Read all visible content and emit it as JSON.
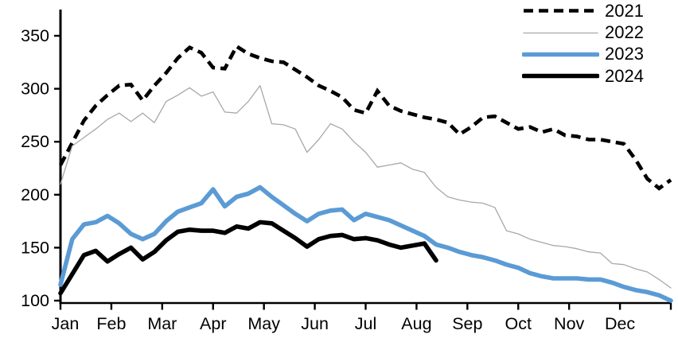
{
  "chart_data": {
    "type": "line",
    "title": "",
    "x_unit": "weekly",
    "grid": false,
    "x_axis": {
      "tick_labels": [
        "Jan",
        "Feb",
        "Mar",
        "Apr",
        "May",
        "Jun",
        "Jul",
        "Aug",
        "Sep",
        "Oct",
        "Nov",
        "Dec"
      ]
    },
    "y_axis": {
      "ticks": [
        100,
        150,
        200,
        250,
        300,
        350
      ],
      "range": [
        100,
        375
      ]
    },
    "legend": {
      "position": "top-right"
    },
    "axis_color": "#000000",
    "background": "#ffffff",
    "series": [
      {
        "name": "2021",
        "color": "#000000",
        "line_style": "dashed",
        "line_width": 4.6,
        "values": [
          228,
          249,
          270,
          284,
          294,
          303,
          304,
          289,
          303,
          315,
          329,
          339,
          334,
          320,
          319,
          340,
          333,
          329,
          326,
          325,
          318,
          311,
          303,
          298,
          292,
          280,
          277,
          298,
          284,
          279,
          276,
          273,
          271,
          268,
          257,
          264,
          273,
          274,
          268,
          262,
          264,
          259,
          262,
          256,
          255,
          252,
          252,
          250,
          248,
          233,
          215,
          206,
          214
        ]
      },
      {
        "name": "2022",
        "color": "#a8a8a8",
        "line_style": "solid",
        "line_width": 1.3,
        "values": [
          210,
          246,
          254,
          262,
          271,
          277,
          269,
          277,
          268,
          288,
          294,
          301,
          293,
          297,
          278,
          277,
          288,
          303,
          267,
          266,
          262,
          240,
          252,
          267,
          262,
          250,
          240,
          226,
          228,
          230,
          224,
          221,
          207,
          198,
          195,
          193,
          192,
          188,
          166,
          163,
          158,
          155,
          152,
          151,
          149,
          146,
          145,
          135,
          134,
          130,
          127,
          120,
          112
        ]
      },
      {
        "name": "2023",
        "color": "#5b9bd5",
        "line_style": "solid",
        "line_width": 5.6,
        "values": [
          115,
          158,
          172,
          174,
          180,
          173,
          163,
          158,
          163,
          175,
          184,
          188,
          192,
          205,
          189,
          198,
          201,
          207,
          198,
          190,
          182,
          175,
          182,
          185,
          186,
          176,
          182,
          179,
          176,
          171,
          166,
          161,
          153,
          150,
          146,
          143,
          141,
          138,
          134,
          131,
          126,
          123,
          121,
          121,
          121,
          120,
          120,
          117,
          113,
          110,
          108,
          105,
          100
        ]
      },
      {
        "name": "2024",
        "color": "#000000",
        "line_style": "solid",
        "line_width": 5.6,
        "values": [
          107,
          125,
          143,
          147,
          137,
          144,
          150,
          139,
          146,
          157,
          165,
          167,
          166,
          166,
          164,
          170,
          168,
          174,
          173,
          166,
          159,
          151,
          158,
          161,
          162,
          158,
          159,
          157,
          153,
          150,
          152,
          154,
          138
        ]
      }
    ]
  }
}
